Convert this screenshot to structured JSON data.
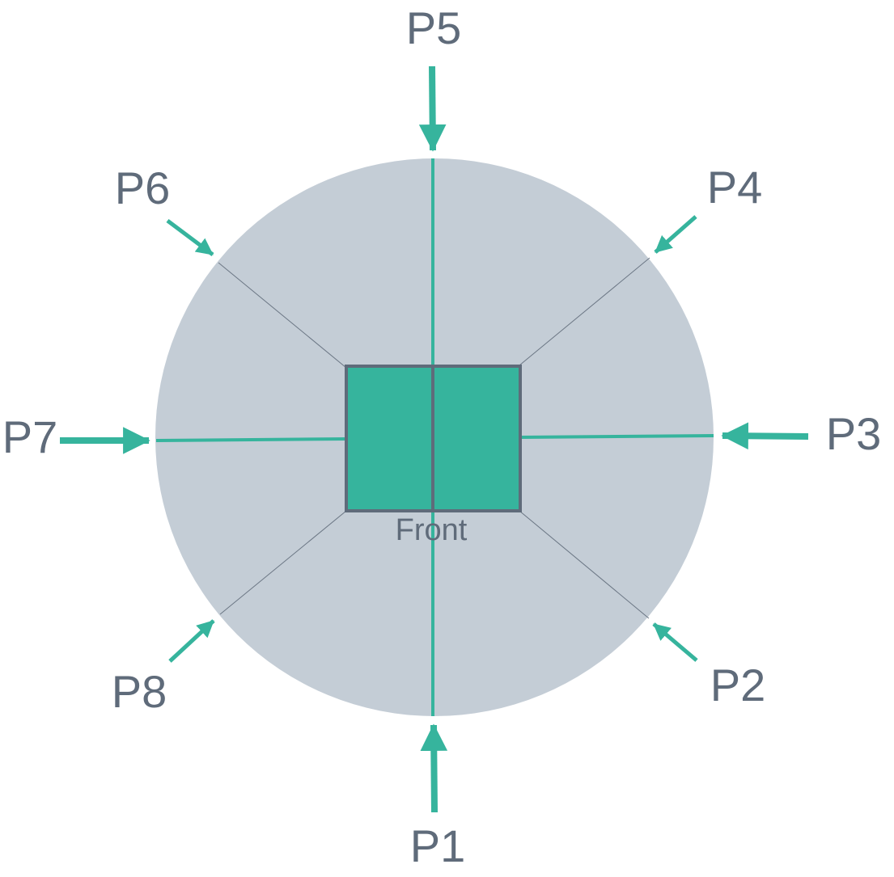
{
  "colors": {
    "disc": "#c4cdd6",
    "accent": "#36b49d",
    "square_border": "#5f6b7a",
    "text": "#5f6b7a",
    "divider": "#6b7684"
  },
  "center": {
    "label": "Front"
  },
  "positions": [
    {
      "id": "p1",
      "label": "P1"
    },
    {
      "id": "p2",
      "label": "P2"
    },
    {
      "id": "p3",
      "label": "P3"
    },
    {
      "id": "p4",
      "label": "P4"
    },
    {
      "id": "p5",
      "label": "P5"
    },
    {
      "id": "p6",
      "label": "P6"
    },
    {
      "id": "p7",
      "label": "P7"
    },
    {
      "id": "p8",
      "label": "P8"
    }
  ]
}
